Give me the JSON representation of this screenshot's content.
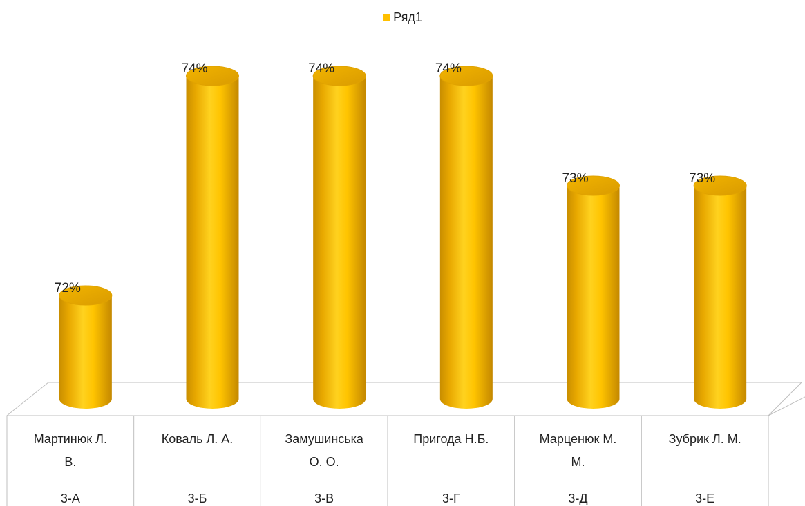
{
  "chart_data": {
    "type": "bar",
    "style": "3d-cylinder",
    "legend": {
      "position": "top",
      "entries": [
        "Ряд1"
      ]
    },
    "series": [
      {
        "name": "Ряд1",
        "color": "#FFC000",
        "values": [
          72,
          74,
          74,
          74,
          73,
          73
        ]
      }
    ],
    "data_labels": [
      "72%",
      "74%",
      "74%",
      "74%",
      "73%",
      "73%"
    ],
    "categories": [
      {
        "name_line1": "Мартинюк Л.",
        "name_line2": "В.",
        "class": "3-А"
      },
      {
        "name_line1": "Коваль Л. А.",
        "name_line2": "",
        "class": "3-Б"
      },
      {
        "name_line1": "Замушинська",
        "name_line2": "О. О.",
        "class": "3-В"
      },
      {
        "name_line1": "Пригода Н.Б.",
        "name_line2": "",
        "class": "3-Г"
      },
      {
        "name_line1": "Марценюк М.",
        "name_line2": "М.",
        "class": "3-Д"
      },
      {
        "name_line1": "Зубрик Л. М.",
        "name_line2": "",
        "class": "3-Е"
      }
    ],
    "ylim": [
      71,
      74
    ],
    "grid": false
  }
}
